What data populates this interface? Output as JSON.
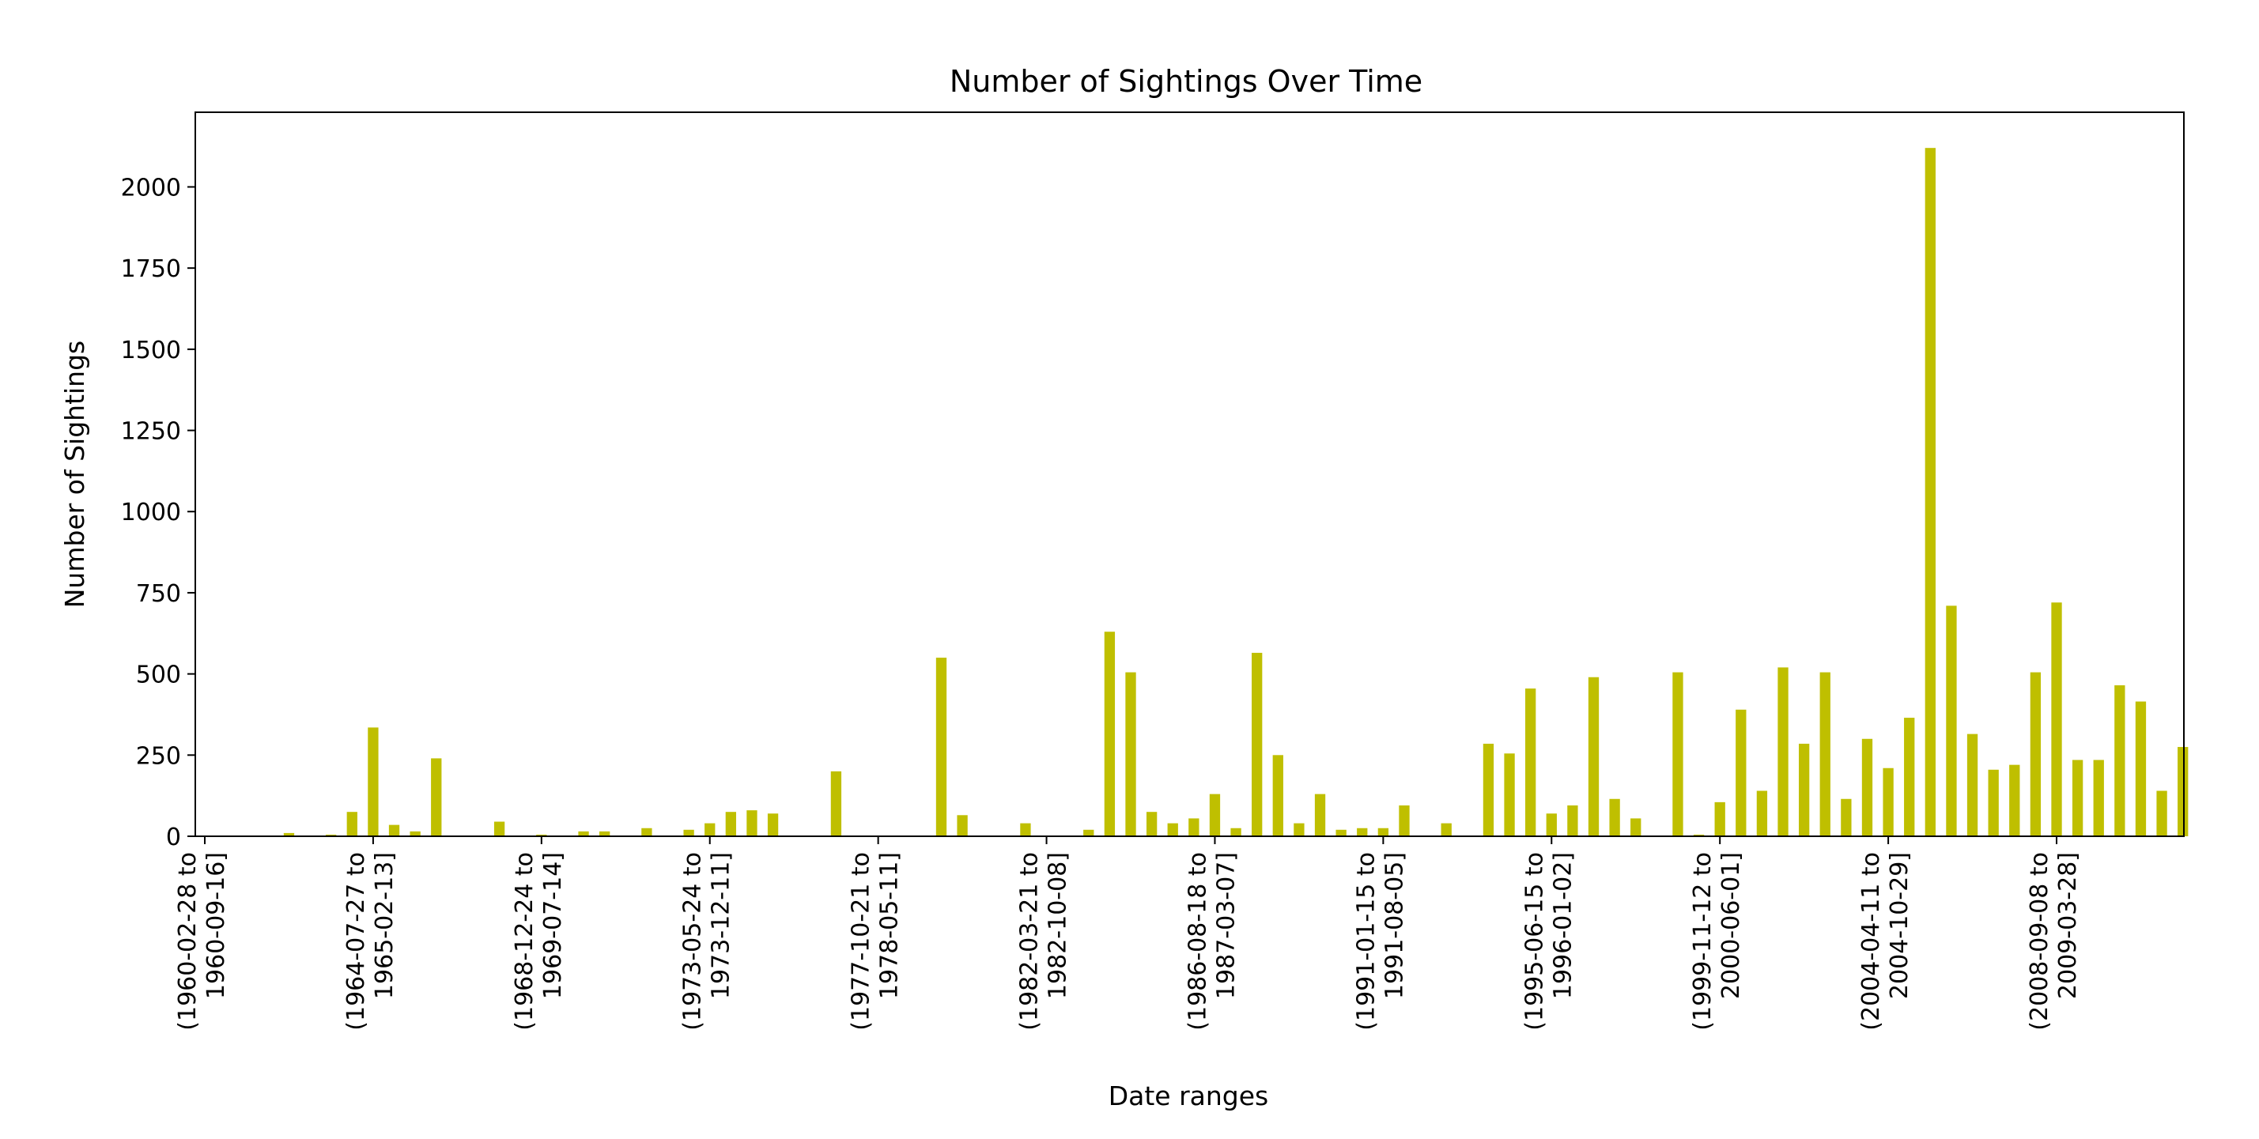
{
  "chart_data": {
    "type": "bar",
    "title": "Number of Sightings Over Time",
    "xlabel": "Date ranges",
    "ylabel": "Number of Sightings",
    "ylim": [
      0,
      2230
    ],
    "yticks": [
      0,
      250,
      500,
      750,
      1000,
      1250,
      1500,
      1750,
      2000
    ],
    "bar_color": "#bfbf00",
    "grid": false,
    "tick_labels": [
      {
        "index": 0,
        "line1": "(1960-02-28 to",
        "line2": "1960-09-16]"
      },
      {
        "index": 8,
        "line1": "(1964-07-27 to",
        "line2": "1965-02-13]"
      },
      {
        "index": 16,
        "line1": "(1968-12-24 to",
        "line2": "1969-07-14]"
      },
      {
        "index": 24,
        "line1": "(1973-05-24 to",
        "line2": "1973-12-11]"
      },
      {
        "index": 32,
        "line1": "(1977-10-21 to",
        "line2": "1978-05-11]"
      },
      {
        "index": 40,
        "line1": "(1982-03-21 to",
        "line2": "1982-10-08]"
      },
      {
        "index": 48,
        "line1": "(1986-08-18 to",
        "line2": "1987-03-07]"
      },
      {
        "index": 56,
        "line1": "(1991-01-15 to",
        "line2": "1991-08-05]"
      },
      {
        "index": 64,
        "line1": "(1995-06-15 to",
        "line2": "1996-01-02]"
      },
      {
        "index": 72,
        "line1": "(1999-11-12 to",
        "line2": "2000-06-01]"
      },
      {
        "index": 80,
        "line1": "(2004-04-11 to",
        "line2": "2004-10-29]"
      },
      {
        "index": 88,
        "line1": "(2008-09-08 to",
        "line2": "2009-03-28]"
      }
    ],
    "values": [
      0,
      0,
      0,
      0,
      10,
      0,
      5,
      75,
      335,
      35,
      15,
      240,
      0,
      0,
      45,
      0,
      5,
      0,
      15,
      15,
      0,
      25,
      0,
      20,
      40,
      75,
      80,
      70,
      0,
      0,
      200,
      0,
      0,
      0,
      0,
      550,
      65,
      0,
      0,
      40,
      0,
      0,
      20,
      630,
      505,
      75,
      40,
      55,
      130,
      25,
      565,
      250,
      40,
      130,
      20,
      25,
      25,
      95,
      0,
      40,
      0,
      285,
      255,
      455,
      70,
      95,
      490,
      115,
      55,
      0,
      505,
      5,
      105,
      390,
      140,
      520,
      285,
      505,
      115,
      300,
      210,
      365,
      2120,
      710,
      315,
      205,
      220,
      505,
      720,
      235,
      235,
      465,
      415,
      140,
      275
    ]
  }
}
